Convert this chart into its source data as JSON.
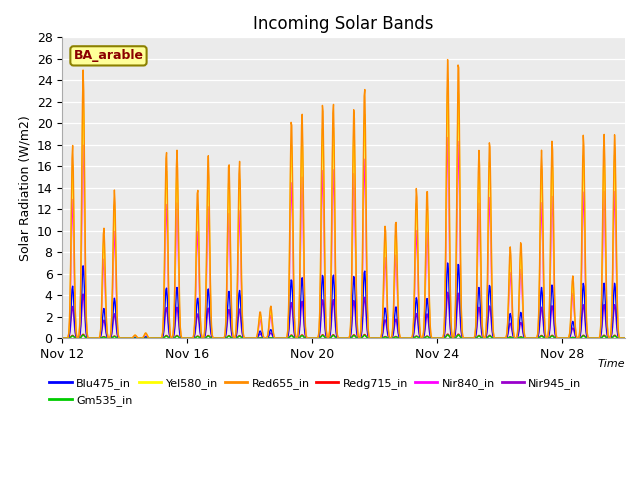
{
  "title": "Incoming Solar Bands",
  "xlabel": "Time",
  "ylabel": "Solar Radiation (W/m2)",
  "ylim": [
    0,
    28
  ],
  "yticks": [
    0,
    2,
    4,
    6,
    8,
    10,
    12,
    14,
    16,
    18,
    20,
    22,
    24,
    26,
    28
  ],
  "annotation_text": "BA_arable",
  "annotation_color": "#8B0000",
  "annotation_bg": "#FFFF99",
  "annotation_border": "#8B8000",
  "background_color": "#EBEBEB",
  "series": [
    {
      "name": "Blu475_in",
      "color": "#0000FF",
      "lw": 1.0
    },
    {
      "name": "Gm535_in",
      "color": "#00CC00",
      "lw": 1.0
    },
    {
      "name": "Yel580_in",
      "color": "#FFFF00",
      "lw": 1.0
    },
    {
      "name": "Red655_in",
      "color": "#FF8C00",
      "lw": 1.0
    },
    {
      "name": "Redg715_in",
      "color": "#FF0000",
      "lw": 1.0
    },
    {
      "name": "Nir840_in",
      "color": "#FF00FF",
      "lw": 1.0
    },
    {
      "name": "Nir945_in",
      "color": "#9900CC",
      "lw": 1.0
    }
  ],
  "xtick_labels": [
    "Nov 12",
    "Nov 16",
    "Nov 20",
    "Nov 24",
    "Nov 28"
  ],
  "xtick_positions": [
    0,
    4,
    8,
    12,
    16
  ],
  "num_days": 18
}
